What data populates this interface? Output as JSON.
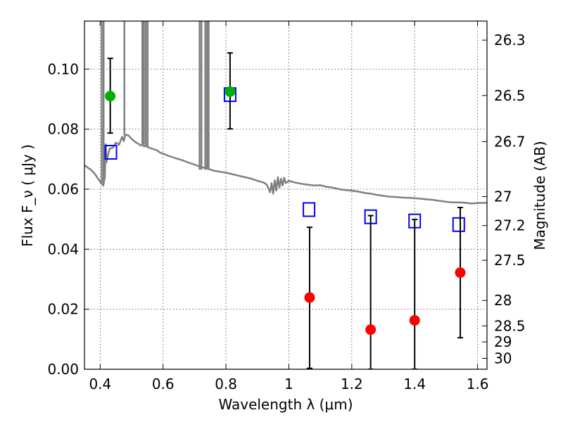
{
  "chart_data": {
    "type": "scatter",
    "title": "",
    "xlabel": "Wavelength  λ (μm)",
    "ylabel": "Flux  F_ν ( μJy )",
    "ylabel_right": "Magnitude (AB)",
    "xlim": [
      0.35,
      1.63
    ],
    "ylim": [
      0.0,
      0.116
    ],
    "x_ticks": [
      0.4,
      0.6,
      0.8,
      1.0,
      1.2,
      1.4,
      1.6
    ],
    "x_tick_labels": [
      "0.4",
      "0.6",
      "0.8",
      "1",
      "1.2",
      "1.4",
      "1.6"
    ],
    "y_ticks": [
      0.0,
      0.02,
      0.04,
      0.06,
      0.08,
      0.1
    ],
    "y_tick_labels": [
      "0.00",
      "0.02",
      "0.04",
      "0.06",
      "0.08",
      "0.10"
    ],
    "right_axis": {
      "scale": "AB magnitude",
      "ticks": [
        26.3,
        26.5,
        26.7,
        27.0,
        27.2,
        27.5,
        28.0,
        28.5,
        29.0,
        30.0
      ],
      "tick_labels": [
        "26.3",
        "26.5",
        "26.7",
        "27",
        "27.2",
        "27.5",
        "28",
        "28.5",
        "29",
        "30"
      ]
    },
    "grid": true,
    "colors": {
      "model": "#808080",
      "model_photometry": "#0000ff",
      "detections": "#00b000",
      "non_detections": "#ff0000",
      "error_bars": "#000000"
    },
    "series": [
      {
        "kind": "line",
        "points": [
          [
            0.35,
            0.068
          ],
          [
            0.36,
            0.0672
          ],
          [
            0.37,
            0.0665
          ],
          [
            0.38,
            0.0655
          ],
          [
            0.39,
            0.064
          ],
          [
            0.4,
            0.0625
          ],
          [
            0.405,
            0.0618
          ],
          [
            0.41,
            0.0612
          ],
          [
            0.415,
            0.064
          ],
          [
            0.418,
            0.075
          ],
          [
            0.42,
            0.069
          ],
          [
            0.425,
            0.0715
          ],
          [
            0.43,
            0.0735
          ],
          [
            0.44,
            0.0738
          ],
          [
            0.45,
            0.0755
          ],
          [
            0.46,
            0.0748
          ],
          [
            0.47,
            0.0775
          ],
          [
            0.475,
            0.076
          ],
          [
            0.48,
            0.0782
          ],
          [
            0.49,
            0.0779
          ],
          [
            0.5,
            0.0768
          ],
          [
            0.51,
            0.0758
          ],
          [
            0.52,
            0.0752
          ],
          [
            0.53,
            0.0745
          ],
          [
            0.535,
            0.075
          ],
          [
            0.54,
            0.0742
          ],
          [
            0.545,
            0.0748
          ],
          [
            0.55,
            0.074
          ],
          [
            0.56,
            0.0737
          ],
          [
            0.57,
            0.0733
          ],
          [
            0.58,
            0.073
          ],
          [
            0.59,
            0.0722
          ],
          [
            0.6,
            0.0718
          ],
          [
            0.62,
            0.071
          ],
          [
            0.64,
            0.0703
          ],
          [
            0.66,
            0.0697
          ],
          [
            0.68,
            0.0689
          ],
          [
            0.7,
            0.0682
          ],
          [
            0.72,
            0.0674
          ],
          [
            0.74,
            0.0669
          ],
          [
            0.75,
            0.0665
          ],
          [
            0.76,
            0.0662
          ],
          [
            0.78,
            0.0658
          ],
          [
            0.8,
            0.0655
          ],
          [
            0.82,
            0.065
          ],
          [
            0.84,
            0.0645
          ],
          [
            0.86,
            0.064
          ],
          [
            0.88,
            0.0635
          ],
          [
            0.9,
            0.0628
          ],
          [
            0.92,
            0.0622
          ],
          [
            0.93,
            0.0615
          ],
          [
            0.94,
            0.059
          ],
          [
            0.945,
            0.062
          ],
          [
            0.95,
            0.0585
          ],
          [
            0.955,
            0.063
          ],
          [
            0.96,
            0.0595
          ],
          [
            0.965,
            0.064
          ],
          [
            0.97,
            0.0605
          ],
          [
            0.975,
            0.0635
          ],
          [
            0.98,
            0.0612
          ],
          [
            0.985,
            0.0638
          ],
          [
            0.99,
            0.062
          ],
          [
            1.0,
            0.0628
          ],
          [
            1.02,
            0.0622
          ],
          [
            1.04,
            0.0618
          ],
          [
            1.06,
            0.0615
          ],
          [
            1.08,
            0.0612
          ],
          [
            1.1,
            0.0613
          ],
          [
            1.12,
            0.0608
          ],
          [
            1.14,
            0.0605
          ],
          [
            1.16,
            0.06
          ],
          [
            1.18,
            0.0597
          ],
          [
            1.2,
            0.0595
          ],
          [
            1.22,
            0.0592
          ],
          [
            1.24,
            0.0588
          ],
          [
            1.26,
            0.0585
          ],
          [
            1.28,
            0.0581
          ],
          [
            1.3,
            0.0578
          ],
          [
            1.32,
            0.0575
          ],
          [
            1.34,
            0.0574
          ],
          [
            1.36,
            0.0572
          ],
          [
            1.38,
            0.0571
          ],
          [
            1.4,
            0.057
          ],
          [
            1.42,
            0.0568
          ],
          [
            1.44,
            0.0566
          ],
          [
            1.46,
            0.0564
          ],
          [
            1.48,
            0.0561
          ],
          [
            1.5,
            0.0558
          ],
          [
            1.52,
            0.0556
          ],
          [
            1.54,
            0.0556
          ],
          [
            1.56,
            0.0555
          ],
          [
            1.58,
            0.0552
          ],
          [
            1.6,
            0.0554
          ],
          [
            1.63,
            0.0555
          ]
        ],
        "spikes": [
          {
            "x": 0.405,
            "ymin": 0.062,
            "ymax": 0.116
          },
          {
            "x": 0.411,
            "ymin": 0.062,
            "ymax": 0.116
          },
          {
            "x": 0.477,
            "ymin": 0.078,
            "ymax": 0.116
          },
          {
            "x": 0.534,
            "ymin": 0.075,
            "ymax": 0.116
          },
          {
            "x": 0.539,
            "ymin": 0.075,
            "ymax": 0.116
          },
          {
            "x": 0.545,
            "ymin": 0.075,
            "ymax": 0.116
          },
          {
            "x": 0.551,
            "ymin": 0.074,
            "ymax": 0.116
          },
          {
            "x": 0.716,
            "ymin": 0.0665,
            "ymax": 0.116
          },
          {
            "x": 0.722,
            "ymin": 0.0665,
            "ymax": 0.116
          },
          {
            "x": 0.734,
            "ymin": 0.0665,
            "ymax": 0.116
          },
          {
            "x": 0.74,
            "ymin": 0.0665,
            "ymax": 0.116
          },
          {
            "x": 0.745,
            "ymin": 0.0665,
            "ymax": 0.116
          }
        ]
      },
      {
        "kind": "open-square",
        "x": [
          0.434,
          0.813,
          1.064,
          1.26,
          1.4,
          1.54
        ],
        "y": [
          0.0723,
          0.0915,
          0.0532,
          0.0508,
          0.0494,
          0.0482
        ]
      },
      {
        "kind": "detection",
        "x": [
          0.432,
          0.813
        ],
        "y": [
          0.091,
          0.0925
        ],
        "err_low": [
          0.0787,
          0.0801
        ],
        "err_high": [
          0.1036,
          0.1054
        ]
      },
      {
        "kind": "upper-limit",
        "x": [
          1.066,
          1.26,
          1.4,
          1.545
        ],
        "y": [
          0.0239,
          0.0132,
          0.0163,
          0.0322
        ],
        "err_low": [
          0.0003,
          0.0,
          0.0,
          0.0105
        ],
        "err_high": [
          0.0473,
          0.0512,
          0.0499,
          0.0539
        ]
      }
    ]
  }
}
